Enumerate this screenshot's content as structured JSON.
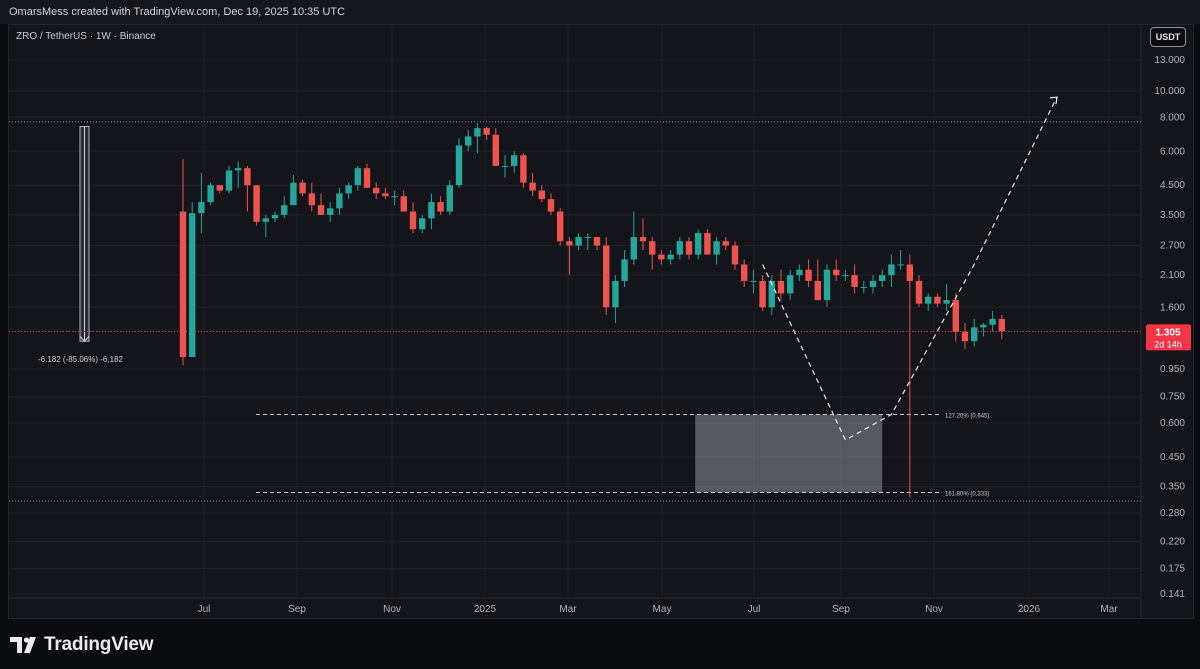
{
  "header": {
    "created_by": "OmarsMess created with TradingView.com, Dec 19, 2025 10:35 UTC"
  },
  "legend": {
    "symbol": "ZRO / TetherUS · 1W · Binance"
  },
  "currency_button": {
    "label": "USDT"
  },
  "price_tag": {
    "price": "1.305",
    "countdown": "2d 14h"
  },
  "branding": {
    "name": "TradingView"
  },
  "colors": {
    "up": "#26a69a",
    "down": "#ef5350",
    "background": "#14151a",
    "grid": "#1d2027",
    "current_price": "#f23645"
  },
  "chart_data": {
    "type": "candlestick",
    "interval": "1W",
    "y_scale": "log",
    "y_ticks": [
      "13.000",
      "10.000",
      "8.000",
      "6.000",
      "4.500",
      "3.500",
      "2.700",
      "2.100",
      "1.600",
      "0.950",
      "0.750",
      "0.600",
      "0.450",
      "0.350",
      "0.280",
      "0.220",
      "0.175",
      "0.141"
    ],
    "x_ticks": [
      "Jul",
      "Sep",
      "Nov",
      "2025",
      "Mar",
      "May",
      "Jul",
      "Sep",
      "Nov",
      "2026",
      "Mar"
    ],
    "candles_ohlc": [
      [
        3.6,
        5.6,
        0.98,
        1.05
      ],
      [
        1.05,
        3.9,
        1.05,
        3.55
      ],
      [
        3.55,
        5.0,
        3.0,
        3.9
      ],
      [
        3.9,
        4.6,
        3.8,
        4.5
      ],
      [
        4.5,
        4.5,
        4.2,
        4.3
      ],
      [
        4.3,
        5.3,
        4.2,
        5.1
      ],
      [
        5.1,
        5.5,
        4.4,
        5.2
      ],
      [
        5.2,
        5.3,
        3.6,
        4.5
      ],
      [
        4.5,
        4.5,
        3.2,
        3.3
      ],
      [
        3.3,
        3.5,
        2.9,
        3.4
      ],
      [
        3.4,
        3.6,
        3.3,
        3.5
      ],
      [
        3.5,
        4.1,
        3.4,
        3.8
      ],
      [
        3.8,
        4.9,
        3.8,
        4.6
      ],
      [
        4.6,
        4.7,
        4.1,
        4.2
      ],
      [
        4.2,
        4.6,
        3.6,
        3.8
      ],
      [
        3.8,
        4.2,
        3.5,
        3.5
      ],
      [
        3.5,
        3.9,
        3.3,
        3.7
      ],
      [
        3.7,
        4.4,
        3.5,
        4.2
      ],
      [
        4.2,
        4.6,
        4.0,
        4.5
      ],
      [
        4.5,
        5.3,
        4.3,
        5.2
      ],
      [
        5.2,
        5.4,
        4.4,
        4.4
      ],
      [
        4.4,
        4.6,
        4.0,
        4.2
      ],
      [
        4.2,
        4.4,
        4.0,
        4.1
      ],
      [
        4.1,
        4.3,
        3.8,
        4.1
      ],
      [
        4.1,
        4.3,
        3.6,
        3.6
      ],
      [
        3.6,
        3.9,
        3.0,
        3.1
      ],
      [
        3.1,
        3.5,
        3.0,
        3.4
      ],
      [
        3.4,
        4.2,
        3.1,
        3.9
      ],
      [
        3.9,
        4.1,
        3.5,
        3.6
      ],
      [
        3.6,
        4.7,
        3.5,
        4.5
      ],
      [
        4.5,
        6.7,
        4.4,
        6.3
      ],
      [
        6.3,
        7.2,
        6.0,
        6.8
      ],
      [
        6.8,
        7.6,
        5.9,
        7.3
      ],
      [
        7.3,
        7.4,
        6.6,
        6.9
      ],
      [
        6.9,
        7.3,
        5.3,
        5.3
      ],
      [
        5.3,
        5.8,
        4.8,
        5.3
      ],
      [
        5.3,
        6.0,
        5.0,
        5.8
      ],
      [
        5.8,
        5.9,
        4.4,
        4.6
      ],
      [
        4.6,
        5.0,
        4.1,
        4.3
      ],
      [
        4.3,
        4.5,
        3.9,
        4.0
      ],
      [
        4.0,
        4.2,
        3.5,
        3.6
      ],
      [
        3.6,
        3.7,
        2.7,
        2.8
      ],
      [
        2.8,
        2.9,
        2.1,
        2.7
      ],
      [
        2.7,
        3.0,
        2.6,
        2.9
      ],
      [
        2.9,
        3.0,
        2.6,
        2.9
      ],
      [
        2.9,
        2.9,
        2.6,
        2.7
      ],
      [
        2.7,
        2.9,
        1.5,
        1.6
      ],
      [
        1.6,
        2.1,
        1.4,
        2.0
      ],
      [
        2.0,
        2.6,
        1.9,
        2.4
      ],
      [
        2.4,
        3.6,
        2.3,
        2.9
      ],
      [
        2.9,
        3.4,
        2.6,
        2.8
      ],
      [
        2.8,
        2.9,
        2.2,
        2.5
      ],
      [
        2.5,
        2.6,
        2.3,
        2.4
      ],
      [
        2.4,
        2.6,
        2.3,
        2.5
      ],
      [
        2.5,
        2.9,
        2.4,
        2.8
      ],
      [
        2.8,
        2.9,
        2.4,
        2.5
      ],
      [
        2.5,
        3.1,
        2.4,
        3.0
      ],
      [
        3.0,
        3.1,
        2.5,
        2.5
      ],
      [
        2.5,
        2.9,
        2.3,
        2.8
      ],
      [
        2.8,
        2.9,
        2.6,
        2.7
      ],
      [
        2.7,
        2.8,
        2.2,
        2.3
      ],
      [
        2.3,
        2.4,
        1.9,
        2.0
      ],
      [
        2.0,
        2.2,
        1.8,
        2.0
      ],
      [
        2.0,
        2.1,
        1.55,
        1.6
      ],
      [
        1.6,
        2.1,
        1.5,
        2.0
      ],
      [
        2.0,
        2.2,
        1.7,
        1.8
      ],
      [
        1.8,
        2.2,
        1.7,
        2.1
      ],
      [
        2.1,
        2.3,
        2.0,
        2.2
      ],
      [
        2.2,
        2.4,
        1.9,
        2.0
      ],
      [
        2.0,
        2.4,
        1.7,
        1.7
      ],
      [
        1.7,
        2.3,
        1.6,
        2.2
      ],
      [
        2.2,
        2.4,
        2.0,
        2.1
      ],
      [
        2.1,
        2.2,
        2.0,
        2.1
      ],
      [
        2.1,
        2.3,
        1.8,
        1.9
      ],
      [
        1.9,
        2.0,
        1.8,
        1.9
      ],
      [
        1.9,
        2.1,
        1.8,
        2.0
      ],
      [
        2.0,
        2.2,
        1.9,
        2.1
      ],
      [
        2.1,
        2.5,
        1.9,
        2.3
      ],
      [
        2.3,
        2.6,
        2.2,
        2.3
      ],
      [
        2.3,
        2.5,
        0.32,
        2.0
      ],
      [
        2.0,
        2.1,
        1.6,
        1.65
      ],
      [
        1.65,
        1.8,
        1.55,
        1.75
      ],
      [
        1.75,
        1.8,
        1.6,
        1.65
      ],
      [
        1.65,
        1.95,
        1.55,
        1.7
      ],
      [
        1.7,
        1.8,
        1.2,
        1.3
      ],
      [
        1.3,
        1.4,
        1.12,
        1.2
      ],
      [
        1.2,
        1.45,
        1.15,
        1.35
      ],
      [
        1.35,
        1.4,
        1.25,
        1.38
      ],
      [
        1.38,
        1.55,
        1.3,
        1.45
      ],
      [
        1.45,
        1.5,
        1.22,
        1.305
      ]
    ],
    "current_price": 1.305,
    "horizontal_levels": [
      7.7,
      0.31
    ],
    "fibonacci_labels": [
      {
        "label": "127.20% (0.645)",
        "value": 0.645
      },
      {
        "label": "161.80% (0.333)",
        "value": 0.333
      }
    ],
    "measure_label": "-6.182 (-85.06%) -6,182",
    "projection_path_values": [
      2.3,
      0.52,
      0.645,
      2.3,
      9.5
    ],
    "projection_path_bar_index": [
      63,
      72,
      77,
      86,
      95
    ],
    "target_zone": {
      "top": 0.645,
      "bottom": 0.333
    }
  }
}
